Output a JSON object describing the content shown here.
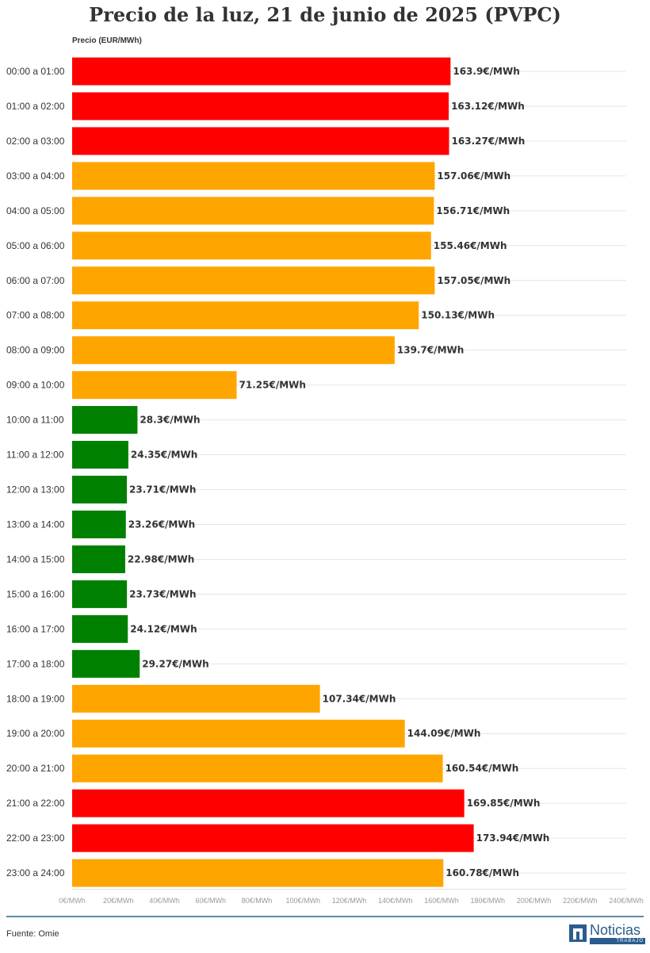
{
  "chart_data": {
    "type": "bar",
    "orientation": "horizontal",
    "title": "Precio de la luz, 21 de junio de 2025 (PVPC)",
    "ylabel": "Precio (EUR/MWh)",
    "xlabel": "",
    "unit_suffix": "€/MWh",
    "xlim": [
      0,
      240
    ],
    "x_ticks": [
      0,
      20,
      40,
      60,
      80,
      100,
      120,
      140,
      160,
      180,
      200,
      220,
      240
    ],
    "x_tick_labels": [
      "0€/MWh",
      "20€/MWh",
      "40€/MWh",
      "60€/MWh",
      "80€/MWh",
      "100€/MWh",
      "120€/MWh",
      "140€/MWh",
      "160€/MWh",
      "180€/MWh",
      "200€/MWh",
      "220€/MWh",
      "240€/MWh"
    ],
    "grid": true,
    "categories": [
      "00:00 a 01:00",
      "01:00 a 02:00",
      "02:00 a 03:00",
      "03:00 a 04:00",
      "04:00 a 05:00",
      "05:00 a 06:00",
      "06:00 a 07:00",
      "07:00 a 08:00",
      "08:00 a 09:00",
      "09:00 a 10:00",
      "10:00 a 11:00",
      "11:00 a 12:00",
      "12:00 a 13:00",
      "13:00 a 14:00",
      "14:00 a 15:00",
      "15:00 a 16:00",
      "16:00 a 17:00",
      "17:00 a 18:00",
      "18:00 a 19:00",
      "19:00 a 20:00",
      "20:00 a 21:00",
      "21:00 a 22:00",
      "22:00 a 23:00",
      "23:00 a 24:00"
    ],
    "values": [
      163.9,
      163.12,
      163.27,
      157.06,
      156.71,
      155.46,
      157.05,
      150.13,
      139.7,
      71.25,
      28.3,
      24.35,
      23.71,
      23.26,
      22.98,
      23.73,
      24.12,
      29.27,
      107.34,
      144.09,
      160.54,
      169.85,
      173.94,
      160.78
    ],
    "value_labels": [
      "163.9€/MWh",
      "163.12€/MWh",
      "163.27€/MWh",
      "157.06€/MWh",
      "156.71€/MWh",
      "155.46€/MWh",
      "157.05€/MWh",
      "150.13€/MWh",
      "139.7€/MWh",
      "71.25€/MWh",
      "28.3€/MWh",
      "24.35€/MWh",
      "23.71€/MWh",
      "23.26€/MWh",
      "22.98€/MWh",
      "23.73€/MWh",
      "24.12€/MWh",
      "29.27€/MWh",
      "107.34€/MWh",
      "144.09€/MWh",
      "160.54€/MWh",
      "169.85€/MWh",
      "173.94€/MWh",
      "160.78€/MWh"
    ],
    "bar_colors": [
      "#ff0000",
      "#ff0000",
      "#ff0000",
      "#ffa500",
      "#ffa500",
      "#ffa500",
      "#ffa500",
      "#ffa500",
      "#ffa500",
      "#ffa500",
      "#008000",
      "#008000",
      "#008000",
      "#008000",
      "#008000",
      "#008000",
      "#008000",
      "#008000",
      "#ffa500",
      "#ffa500",
      "#ffa500",
      "#ff0000",
      "#ff0000",
      "#ffa500"
    ]
  },
  "footer": {
    "source": "Fuente: Omie",
    "logo_word": "Noticias",
    "logo_sub": "TRABAJO"
  },
  "colors": {
    "divider": "#5d8aa8",
    "logo": "#2a5d8f"
  }
}
